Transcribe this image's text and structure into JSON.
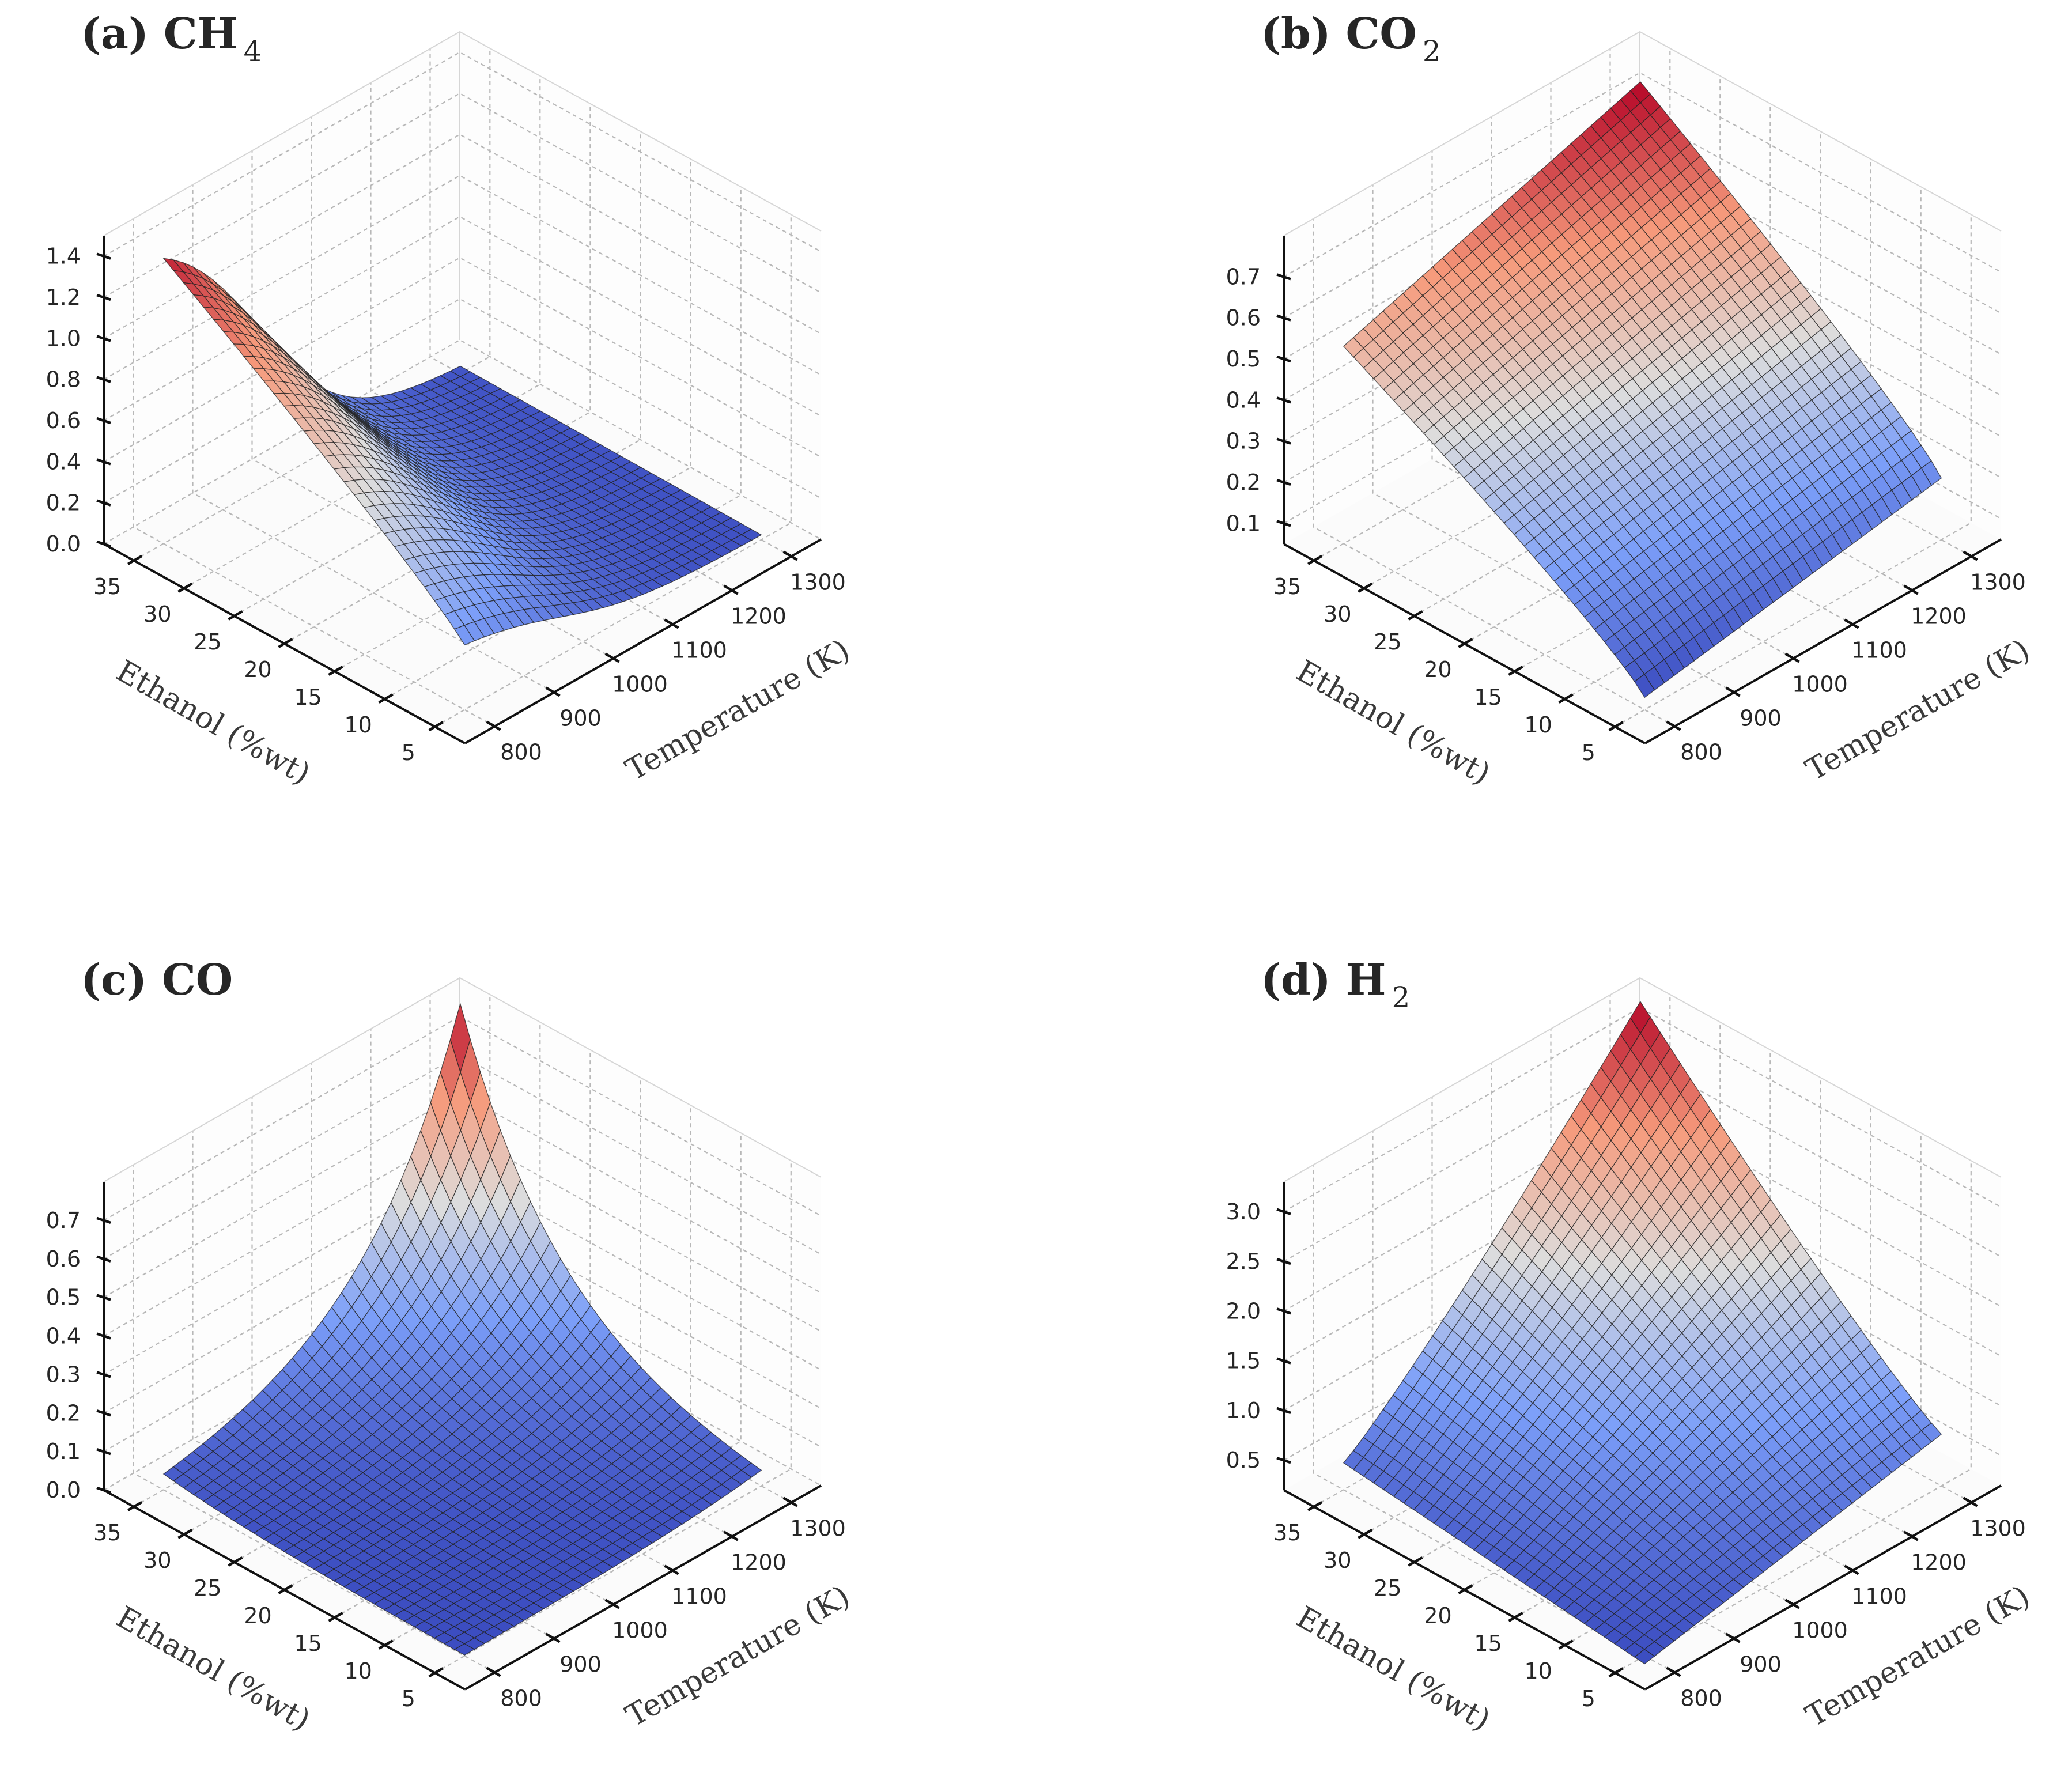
{
  "figure": {
    "type": "surface3d",
    "colormap": "coolwarm",
    "x_label": "Temperature (K)",
    "y_label": "Ethanol (%wt)"
  },
  "chart_data": [
    {
      "id": "a",
      "type": "surface3d",
      "title_prefix": "(a) ",
      "title_main": "CH",
      "title_sub": "4",
      "xlabel": "Temperature (K)",
      "ylabel": "Ethanol (%wt)",
      "x_ticks": [
        "800",
        "900",
        "1000",
        "1100",
        "1200",
        "1300"
      ],
      "y_ticks": [
        "5",
        "10",
        "15",
        "20",
        "25",
        "30",
        "35"
      ],
      "z_ticks": [
        "0.0",
        "0.2",
        "0.4",
        "0.6",
        "0.8",
        "1.0",
        "1.2",
        "1.4"
      ],
      "xlim": [
        750,
        1350
      ],
      "ylim": [
        2,
        38
      ],
      "zlim": [
        0.0,
        1.5
      ],
      "x_range": [
        800,
        1300
      ],
      "y_range": [
        5,
        35
      ],
      "corner_values": {
        "T800_E5": 0.33,
        "T1300_E5": 0.02,
        "T800_E35": 1.45,
        "T1300_E35": 0.03
      },
      "value_model": "sigmoid decay with temperature (midpoint about 960 K), rising with ethanol content",
      "vmin": 0.0,
      "vmax": 1.45
    },
    {
      "id": "b",
      "type": "surface3d",
      "title_prefix": "(b) ",
      "title_main": "CO",
      "title_sub": "2",
      "xlabel": "Temperature (K)",
      "ylabel": "Ethanol (%wt)",
      "x_ticks": [
        "800",
        "900",
        "1000",
        "1100",
        "1200",
        "1300"
      ],
      "y_ticks": [
        "5",
        "10",
        "15",
        "20",
        "25",
        "30",
        "35"
      ],
      "z_ticks": [
        "0.1",
        "0.2",
        "0.3",
        "0.4",
        "0.5",
        "0.6",
        "0.7"
      ],
      "xlim": [
        750,
        1350
      ],
      "ylim": [
        2,
        38
      ],
      "zlim": [
        0.05,
        0.8
      ],
      "x_range": [
        800,
        1300
      ],
      "y_range": [
        5,
        35
      ],
      "corner_values": {
        "T800_E5": 0.08,
        "T1300_E5": 0.2,
        "T800_E35": 0.53,
        "T1300_E35": 0.76
      },
      "value_model": "increases with ethanol content and, more mildly, with temperature",
      "vmin": 0.08,
      "vmax": 0.76
    },
    {
      "id": "c",
      "type": "surface3d",
      "title_prefix": "(c) ",
      "title_main": "CO",
      "title_sub": "",
      "xlabel": "Temperature (K)",
      "ylabel": "Ethanol (%wt)",
      "x_ticks": [
        "800",
        "900",
        "1000",
        "1100",
        "1200",
        "1300"
      ],
      "y_ticks": [
        "5",
        "10",
        "15",
        "20",
        "25",
        "30",
        "35"
      ],
      "z_ticks": [
        "0.0",
        "0.1",
        "0.2",
        "0.3",
        "0.4",
        "0.5",
        "0.6",
        "0.7"
      ],
      "xlim": [
        750,
        1350
      ],
      "ylim": [
        2,
        38
      ],
      "zlim": [
        0.0,
        0.8
      ],
      "x_range": [
        800,
        1300
      ],
      "y_range": [
        5,
        35
      ],
      "corner_values": {
        "T800_E5": 0.0,
        "T1300_E5": 0.04,
        "T800_E35": 0.04,
        "T1300_E35": 0.82
      },
      "value_model": "grows exponentially toward high temperature and high ethanol content",
      "vmin": 0.0,
      "vmax": 0.82
    },
    {
      "id": "d",
      "type": "surface3d",
      "title_prefix": "(d) ",
      "title_main": "H",
      "title_sub": "2",
      "xlabel": "Temperature (K)",
      "ylabel": "Ethanol (%wt)",
      "x_ticks": [
        "800",
        "900",
        "1000",
        "1100",
        "1200",
        "1300"
      ],
      "y_ticks": [
        "5",
        "10",
        "15",
        "20",
        "25",
        "30",
        "35"
      ],
      "z_ticks": [
        "0.5",
        "1.0",
        "1.5",
        "2.0",
        "2.5",
        "3.0"
      ],
      "xlim": [
        750,
        1350
      ],
      "ylim": [
        2,
        38
      ],
      "zlim": [
        0.2,
        3.3
      ],
      "x_range": [
        800,
        1300
      ],
      "y_range": [
        5,
        35
      ],
      "corner_values": {
        "T800_E5": 0.12,
        "T1300_E5": 0.65,
        "T800_E35": 0.45,
        "T1300_E35": 3.4
      },
      "value_model": "increases with both temperature and ethanol content, steepest at the hot, ethanol-rich corner",
      "vmin": 0.12,
      "vmax": 3.4
    }
  ]
}
